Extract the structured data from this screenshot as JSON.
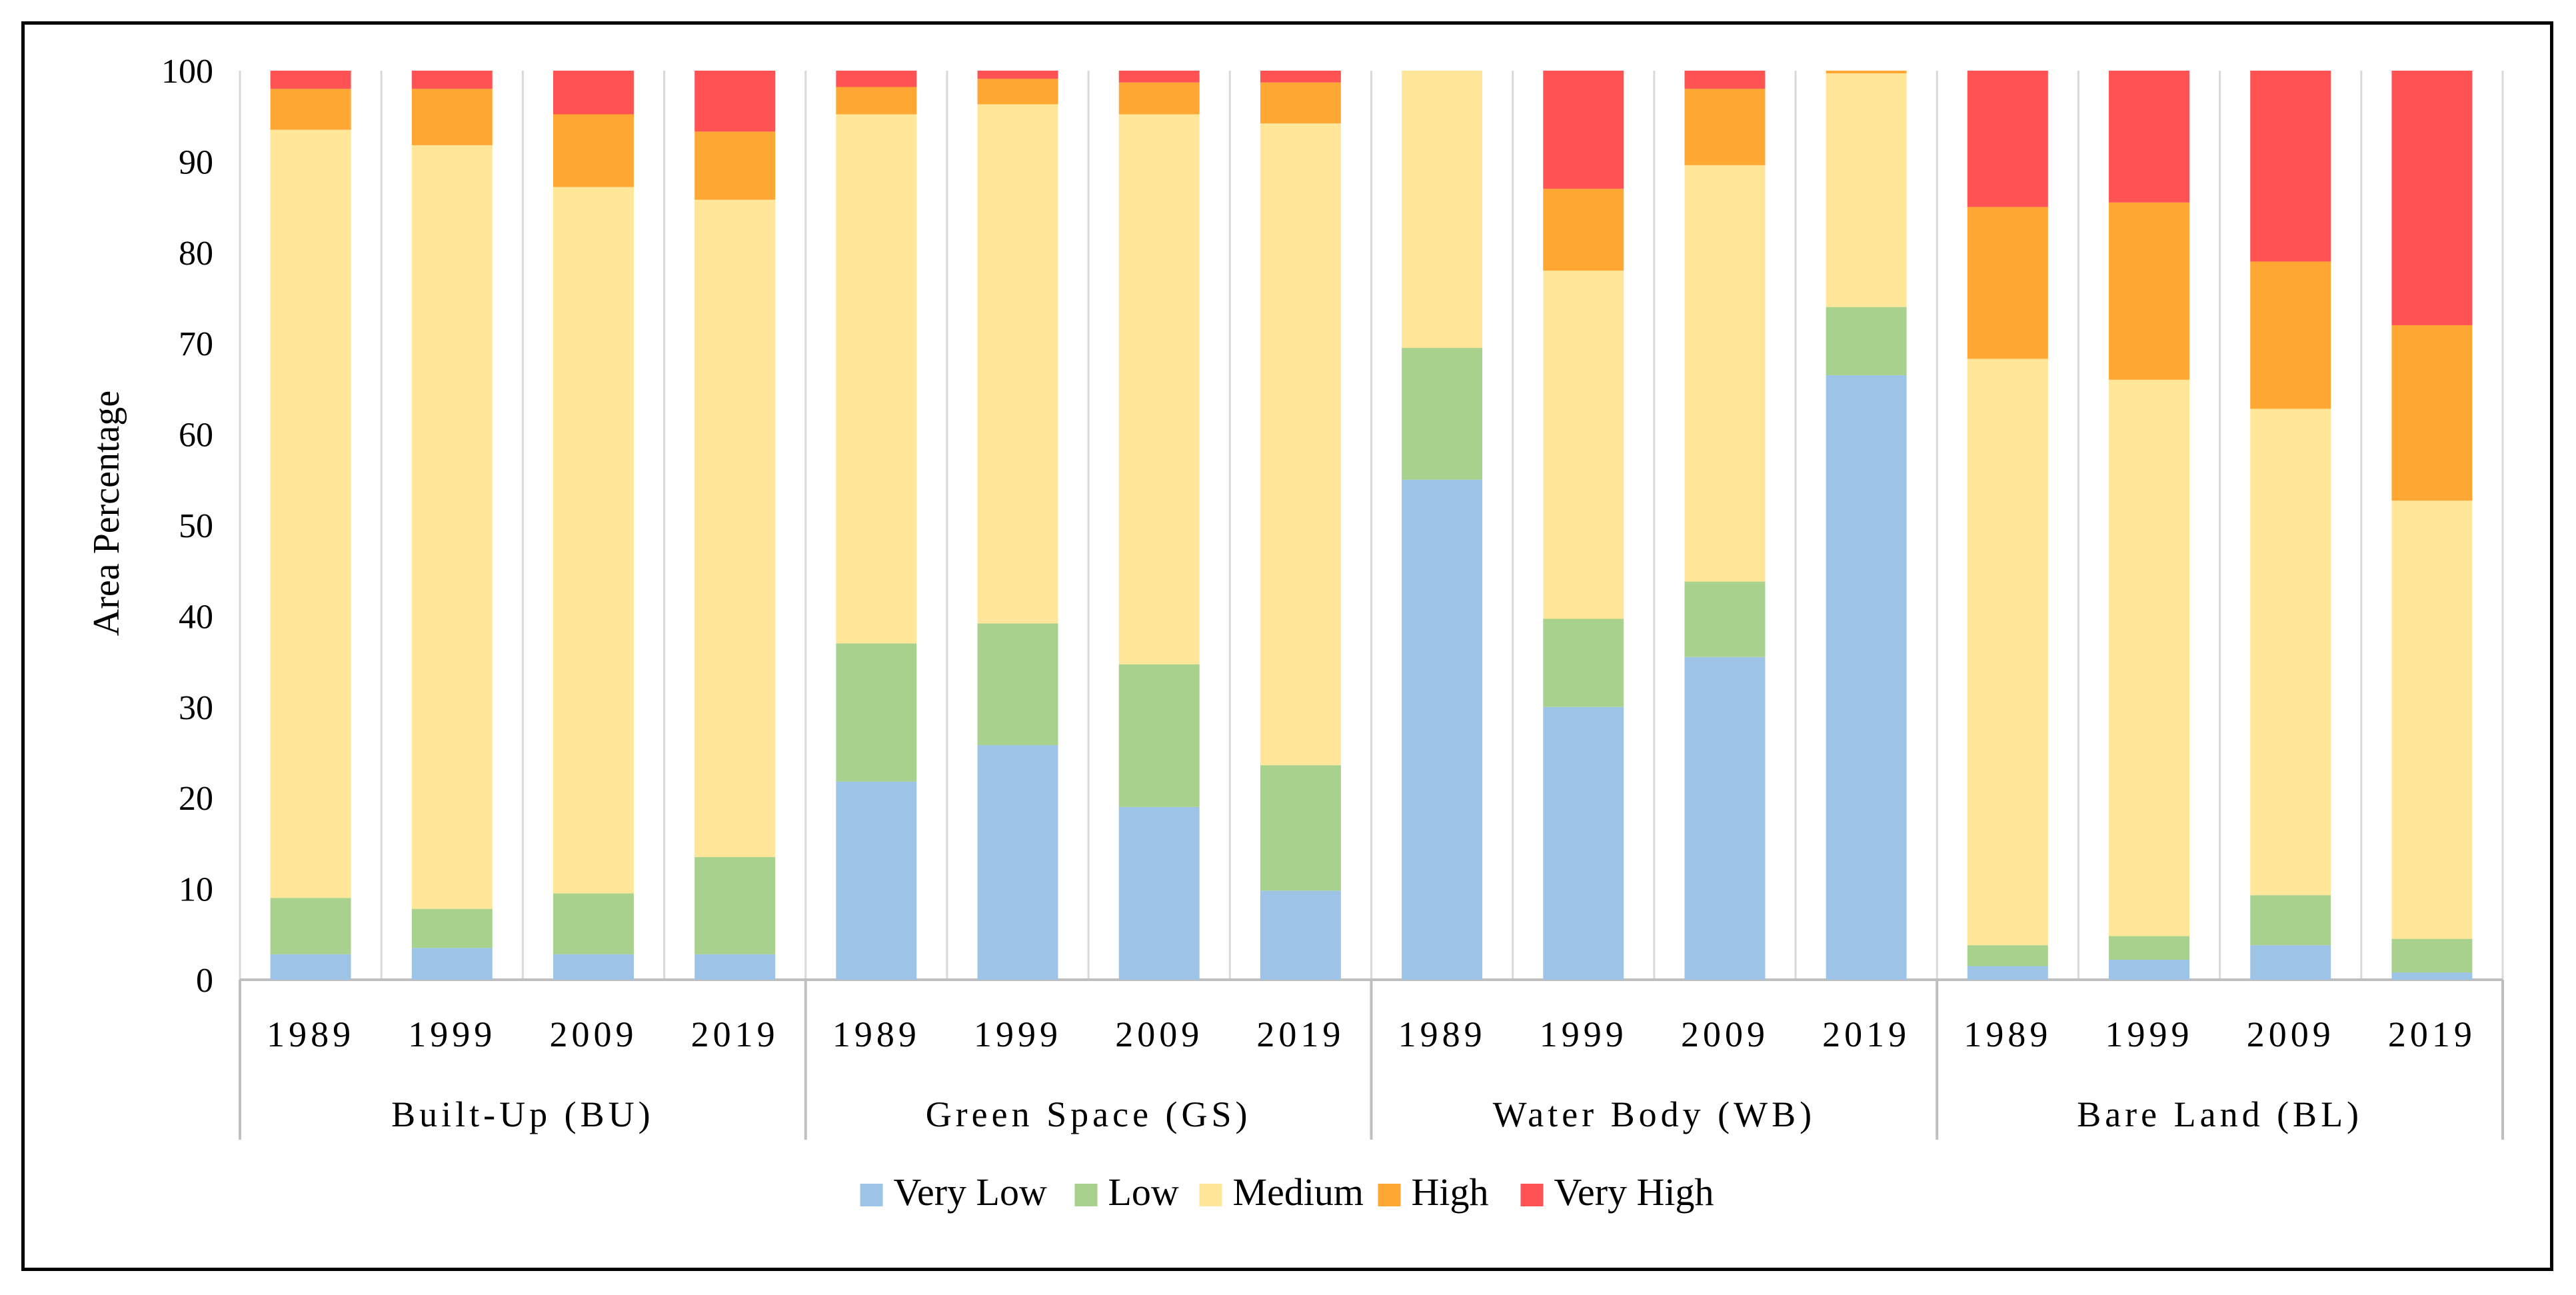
{
  "chart_data": {
    "type": "bar",
    "stacked": true,
    "title": "",
    "ylabel": "Area Percentage",
    "ylim": [
      0,
      100
    ],
    "yticks": [
      0,
      10,
      20,
      30,
      40,
      50,
      60,
      70,
      80,
      90,
      100
    ],
    "grid": false,
    "legend_position": "bottom",
    "groups": [
      {
        "name": "Built-Up (BU)",
        "years": [
          "1989",
          "1999",
          "2009",
          "2019"
        ]
      },
      {
        "name": "Green Space (GS)",
        "years": [
          "1989",
          "1999",
          "2009",
          "2019"
        ]
      },
      {
        "name": "Water Body (WB)",
        "years": [
          "1989",
          "1999",
          "2009",
          "2019"
        ]
      },
      {
        "name": "Bare Land (BL)",
        "years": [
          "1989",
          "1999",
          "2009",
          "2019"
        ]
      }
    ],
    "series": [
      {
        "name": "Very Low",
        "color": "#9dc3e6",
        "values": [
          2.8,
          3.5,
          2.8,
          2.8,
          21.8,
          25.8,
          19.0,
          9.8,
          55.0,
          30.0,
          35.5,
          66.5,
          1.5,
          2.2,
          3.8,
          0.8
        ]
      },
      {
        "name": "Low",
        "color": "#a9d18e",
        "values": [
          6.2,
          4.3,
          6.7,
          10.7,
          15.2,
          13.4,
          15.7,
          13.8,
          14.5,
          9.7,
          8.3,
          7.5,
          2.3,
          2.6,
          5.5,
          3.7
        ]
      },
      {
        "name": "Medium",
        "color": "#ffe699",
        "values": [
          84.5,
          84.0,
          77.7,
          72.3,
          58.2,
          57.1,
          60.5,
          70.6,
          30.5,
          38.3,
          45.8,
          25.7,
          64.5,
          61.2,
          53.5,
          48.2
        ]
      },
      {
        "name": "High",
        "color": "#ffa733",
        "values": [
          4.5,
          6.2,
          8.0,
          7.5,
          3.0,
          2.8,
          3.5,
          4.5,
          0.0,
          9.0,
          8.4,
          0.3,
          16.7,
          19.5,
          16.2,
          19.3
        ]
      },
      {
        "name": "Very High",
        "color": "#ff5252",
        "values": [
          2.0,
          2.0,
          4.8,
          6.7,
          1.8,
          0.9,
          1.3,
          1.3,
          0.0,
          13.0,
          2.0,
          0.0,
          15.0,
          14.5,
          21.0,
          28.0
        ]
      }
    ]
  }
}
